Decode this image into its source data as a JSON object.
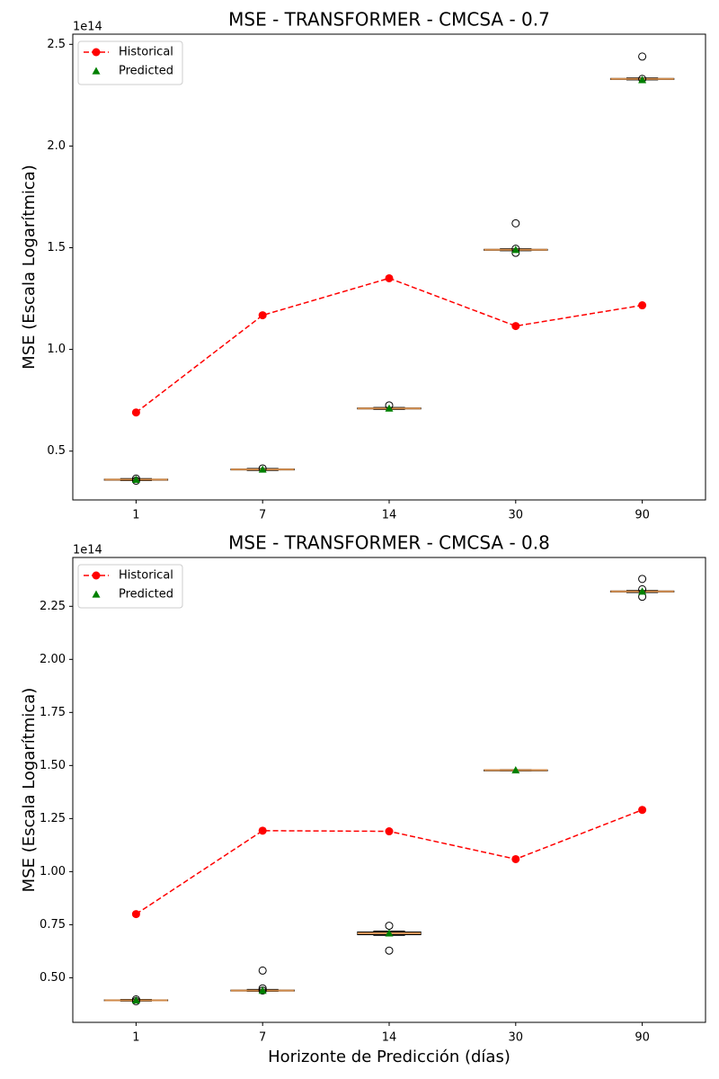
{
  "chart_data": [
    {
      "type": "box",
      "title": "MSE - TRANSFORMER - CMCSA - 0.7",
      "ylabel": "MSE (Escala Logarítmica)",
      "offset_text": "1e14",
      "categories": [
        "1",
        "7",
        "14",
        "30",
        "90"
      ],
      "ylim": [
        0.26,
        2.55
      ],
      "yticks": [
        0.5,
        {
          "value": 1.0,
          "label": "1.0"
        },
        1.5,
        {
          "value": 2.0,
          "label": "2.0"
        },
        2.5
      ],
      "legend": "upper left",
      "series": [
        {
          "name": "Historical",
          "color": "#ff0000",
          "values": [
            0.69,
            1.168,
            1.35,
            1.115,
            1.217
          ]
        }
      ],
      "predicted": {
        "name": "Predicted",
        "color": "#008000"
      },
      "median_color": "#d08a4a",
      "boxes": [
        {
          "whislo": 0.355,
          "q1": 0.357,
          "median": 0.36,
          "q3": 0.362,
          "whishi": 0.365,
          "mean": 0.36,
          "fliers": [
            0.365,
            0.355
          ]
        },
        {
          "whislo": 0.405,
          "q1": 0.408,
          "median": 0.41,
          "q3": 0.412,
          "whishi": 0.415,
          "mean": 0.41,
          "fliers": [
            0.415
          ]
        },
        {
          "whislo": 0.705,
          "q1": 0.708,
          "median": 0.71,
          "q3": 0.712,
          "whishi": 0.715,
          "mean": 0.71,
          "fliers": [
            0.725
          ]
        },
        {
          "whislo": 1.485,
          "q1": 1.488,
          "median": 1.49,
          "q3": 1.492,
          "whishi": 1.495,
          "mean": 1.49,
          "fliers": [
            1.62,
            1.495,
            1.475
          ]
        },
        {
          "whislo": 2.325,
          "q1": 2.328,
          "median": 2.33,
          "q3": 2.332,
          "whishi": 2.335,
          "mean": 2.325,
          "fliers": [
            2.44,
            2.33
          ]
        }
      ]
    },
    {
      "type": "box",
      "title": "MSE - TRANSFORMER - CMCSA - 0.8",
      "ylabel": "MSE (Escala Logarítmica)",
      "xlabel": "Horizonte de Predicción (días)",
      "offset_text": "1e14",
      "categories": [
        "1",
        "7",
        "14",
        "30",
        "90"
      ],
      "ylim": [
        0.29,
        2.48
      ],
      "yticks": [
        {
          "value": 0.5,
          "label": "0.50"
        },
        0.75,
        {
          "value": 1.0,
          "label": "1.00"
        },
        1.25,
        {
          "value": 1.5,
          "label": "1.50"
        },
        1.75,
        {
          "value": 2.0,
          "label": "2.00"
        },
        2.25
      ],
      "legend": "upper left",
      "series": [
        {
          "name": "Historical",
          "color": "#ff0000",
          "values": [
            0.8,
            1.193,
            1.19,
            1.059,
            1.291
          ]
        }
      ],
      "predicted": {
        "name": "Predicted",
        "color": "#008000"
      },
      "median_color": "#d08a4a",
      "boxes": [
        {
          "whislo": 0.39,
          "q1": 0.392,
          "median": 0.394,
          "q3": 0.396,
          "whishi": 0.398,
          "mean": 0.394,
          "fliers": [
            0.398,
            0.39
          ]
        },
        {
          "whislo": 0.436,
          "q1": 0.438,
          "median": 0.44,
          "q3": 0.442,
          "whishi": 0.445,
          "mean": 0.44,
          "fliers": [
            0.534,
            0.45,
            0.44
          ]
        },
        {
          "whislo": 0.7,
          "q1": 0.703,
          "median": 0.71,
          "q3": 0.716,
          "whishi": 0.72,
          "mean": 0.71,
          "fliers": [
            0.745,
            0.628
          ]
        },
        {
          "whislo": 1.475,
          "q1": 1.477,
          "median": 1.478,
          "q3": 1.479,
          "whishi": 1.481,
          "mean": 1.478,
          "fliers": []
        },
        {
          "whislo": 2.315,
          "q1": 2.318,
          "median": 2.32,
          "q3": 2.322,
          "whishi": 2.325,
          "mean": 2.32,
          "fliers": [
            2.379,
            2.33,
            2.295
          ]
        }
      ]
    }
  ]
}
